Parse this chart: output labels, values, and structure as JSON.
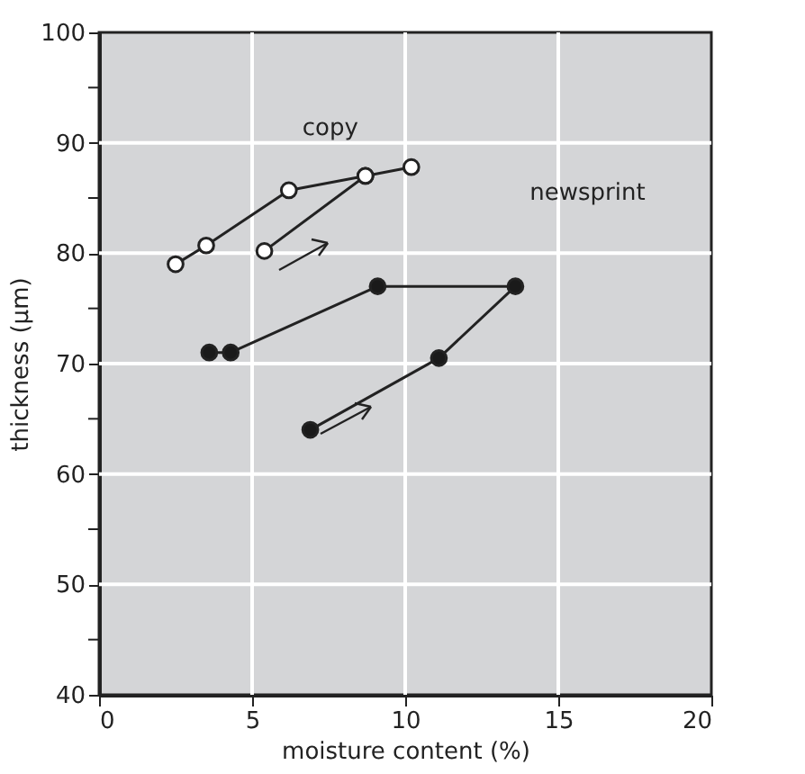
{
  "chart_data": {
    "type": "line",
    "xlabel": "moisture content (%)",
    "ylabel": "thickness (μm)",
    "series": [
      {
        "name": "copy",
        "color": "#ffffff",
        "x": [
          5.4,
          8.7,
          10.2,
          8.7,
          6.2,
          3.5,
          2.5
        ],
        "values": [
          80.2,
          87,
          87.8,
          87,
          85.7,
          80.7,
          79
        ]
      },
      {
        "name": "newsprint",
        "color": "#1a1a1a",
        "x": [
          6.9,
          11.1,
          13.6,
          9.1,
          4.3,
          3.6
        ],
        "values": [
          64,
          70.5,
          77,
          77,
          71,
          71
        ]
      }
    ],
    "xlim": [
      0,
      20
    ],
    "xticks": [
      0,
      5,
      10,
      15,
      20
    ],
    "ylim": [
      40,
      100
    ],
    "yticks": [
      40,
      {
        "value": 45,
        "label": null
      },
      50,
      {
        "value": 55,
        "label": null
      },
      60,
      {
        "value": 65,
        "label": null
      },
      70,
      {
        "value": 75,
        "label": null
      },
      80,
      {
        "value": 85,
        "label": null
      },
      90,
      {
        "value": 95,
        "label": null
      },
      100
    ],
    "grid": true,
    "marker": "circle",
    "line_style": "solid"
  }
}
